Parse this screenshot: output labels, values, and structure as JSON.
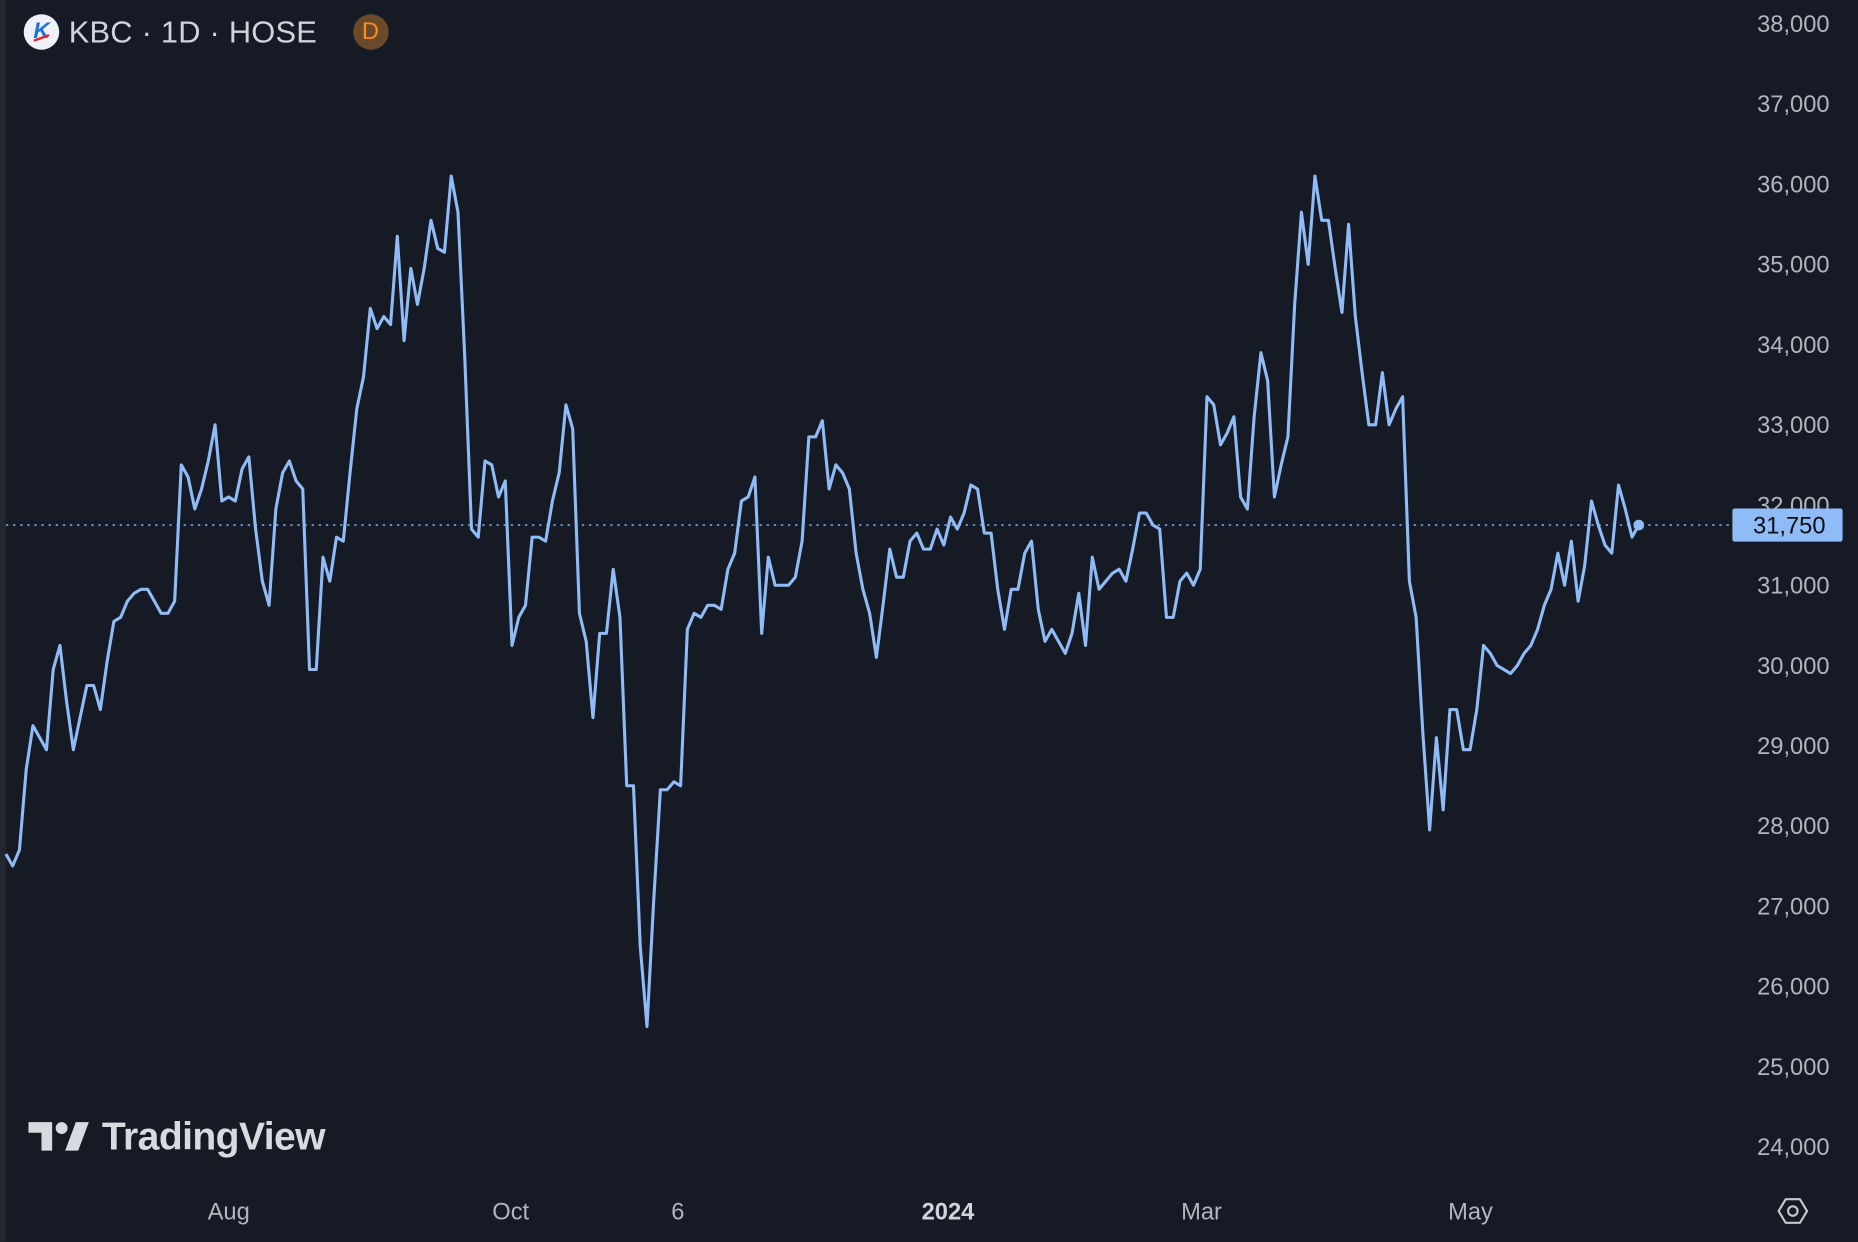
{
  "header": {
    "symbol_title": "KBC · 1D · HOSE",
    "logo_letter": "K",
    "delay_badge": "D"
  },
  "branding": {
    "logo_text": "TradingView"
  },
  "icons": {
    "settings": "gear-hexagon-icon",
    "symbol_logo": "kbc-logo-icon",
    "delay": "delayed-data-badge"
  },
  "colors": {
    "background": "#161a25",
    "line": "#8fbcf7",
    "last_price_label": "#8fbcf7",
    "axis_text": "#b2b5be"
  },
  "chart_data": {
    "type": "line",
    "title": "KBC · 1D · HOSE",
    "xlabel": "",
    "ylabel": "",
    "ylim": [
      23750,
      38050
    ],
    "y_ticks": [
      38000,
      37000,
      36000,
      35000,
      34000,
      33000,
      32000,
      31000,
      30000,
      29000,
      28000,
      27000,
      26000,
      25000,
      24000
    ],
    "y_tick_labels": [
      "38,000",
      "37,000",
      "36,000",
      "35,000",
      "34,000",
      "33,000",
      "32,000",
      "31,000",
      "30,000",
      "29,000",
      "28,000",
      "27,000",
      "26,000",
      "25,000",
      "24,000"
    ],
    "x_tick_labels": [
      "Aug",
      "Oct",
      "6",
      "2024",
      "Mar",
      "May"
    ],
    "grid": false,
    "last_price": 31750,
    "last_price_label": "31,750",
    "series": [
      {
        "values": [
          27650,
          27500,
          27700,
          28700,
          29250,
          29100,
          28950,
          29950,
          30250,
          29550,
          28950,
          29350,
          29750,
          29750,
          29450,
          30050,
          30550,
          30600,
          30800,
          30900,
          30950,
          30950,
          30800,
          30650,
          30650,
          30800,
          32500,
          32350,
          31950,
          32200,
          32550,
          33000,
          32050,
          32100,
          32050,
          32450,
          32600,
          31700,
          31050,
          30750,
          31950,
          32400,
          32550,
          32300,
          32200,
          29950,
          29950,
          31350,
          31050,
          31600,
          31550,
          32400,
          33200,
          33600,
          34450,
          34200,
          34350,
          34250,
          35350,
          34050,
          34950,
          34500,
          34950,
          35550,
          35200,
          35150,
          36100,
          35650,
          33850,
          31700,
          31600,
          32550,
          32500,
          32100,
          32300,
          30250,
          30600,
          30750,
          31600,
          31600,
          31550,
          32050,
          32400,
          33250,
          32950,
          30650,
          30300,
          29350,
          30400,
          30400,
          31200,
          30600,
          28500,
          28500,
          26500,
          25500,
          27050,
          28450,
          28450,
          28550,
          28500,
          30450,
          30650,
          30600,
          30750,
          30750,
          30700,
          31200,
          31400,
          32050,
          32100,
          32350,
          30400,
          31350,
          31000,
          31000,
          31000,
          31100,
          31550,
          32850,
          32850,
          33050,
          32200,
          32500,
          32400,
          32200,
          31400,
          30950,
          30650,
          30100,
          30750,
          31450,
          31100,
          31100,
          31550,
          31650,
          31450,
          31450,
          31700,
          31500,
          31850,
          31700,
          31900,
          32250,
          32200,
          31650,
          31650,
          30950,
          30450,
          30950,
          30950,
          31400,
          31550,
          30700,
          30300,
          30450,
          30300,
          30150,
          30400,
          30900,
          30250,
          31350,
          30950,
          31050,
          31150,
          31200,
          31050,
          31450,
          31900,
          31900,
          31750,
          31700,
          30600,
          30600,
          31050,
          31150,
          31000,
          31200,
          33350,
          33250,
          32750,
          32900,
          33100,
          32100,
          31950,
          33100,
          33900,
          33550,
          32100,
          32500,
          32850,
          34500,
          35650,
          35000,
          36100,
          35550,
          35550,
          34950,
          34400,
          35500,
          34350,
          33650,
          33000,
          33000,
          33650,
          33000,
          33200,
          33350,
          31050,
          30600,
          29150,
          27950,
          29100,
          28200,
          29450,
          29450,
          28950,
          28950,
          29450,
          30250,
          30150,
          30000,
          29950,
          29900,
          30000,
          30150,
          30250,
          30450,
          30750,
          30950,
          31400,
          31000,
          31550,
          30800,
          31250,
          32050,
          31750,
          31500,
          31400,
          32250,
          31950,
          31600,
          31750
        ]
      }
    ]
  }
}
